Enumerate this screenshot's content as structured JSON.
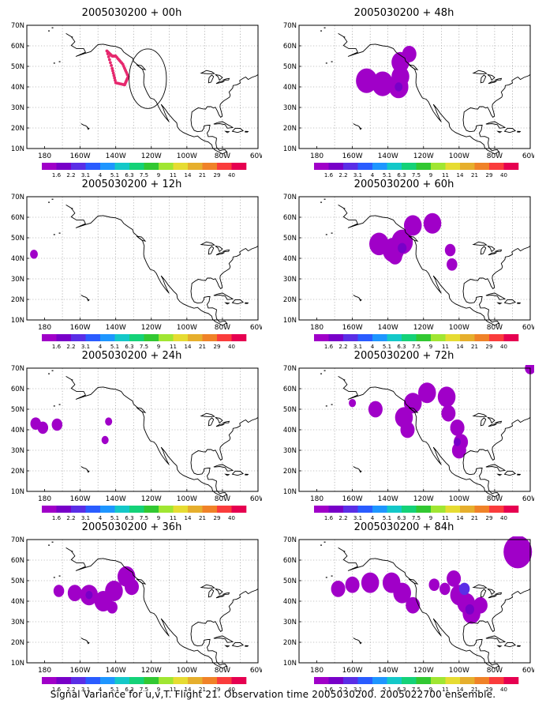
{
  "caption": "Signal Variance for u,v,T. Flight 21. Observation time 2005030200. 2005022700 ensemble.",
  "lat_labels": [
    "70N",
    "60N",
    "50N",
    "40N",
    "30N",
    "20N",
    "10N"
  ],
  "lon_labels": [
    "180",
    "160W",
    "140W",
    "120W",
    "100W",
    "80W",
    "60W"
  ],
  "colorbar": {
    "labels": [
      "1.6",
      "2.2",
      "3.1",
      "4",
      "5.1",
      "6.3",
      "7.5",
      "9",
      "11",
      "14",
      "21",
      "29",
      "40"
    ],
    "colors": [
      "#a000c8",
      "#7800c8",
      "#5a2ee6",
      "#2a5cff",
      "#1e96ff",
      "#14c8c8",
      "#14d278",
      "#32c832",
      "#a0e632",
      "#e6dc32",
      "#e6af2d",
      "#f08228",
      "#fa3c3c",
      "#e60050"
    ]
  },
  "panels": [
    {
      "id": "p00",
      "title": "2005030200 + 00h"
    },
    {
      "id": "p48",
      "title": "2005030200 + 48h"
    },
    {
      "id": "p12",
      "title": "2005030200 + 12h"
    },
    {
      "id": "p60",
      "title": "2005030200 + 60h"
    },
    {
      "id": "p24",
      "title": "2005030200 + 24h"
    },
    {
      "id": "p72",
      "title": "2005030200 + 72h"
    },
    {
      "id": "p36",
      "title": "2005030200 + 36h"
    },
    {
      "id": "p84",
      "title": "2005030200 + 84h"
    }
  ]
}
